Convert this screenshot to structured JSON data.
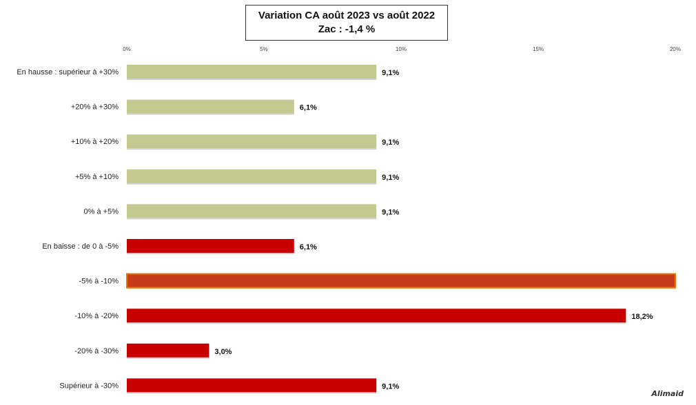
{
  "chart_data": {
    "type": "bar",
    "orientation": "horizontal",
    "title": "Variation CA août 2023 vs août 2022",
    "subtitle": "Zac : -1,4 %",
    "categories": [
      "En hausse : supérieur à +30%",
      "+20% à +30%",
      "+10% à +20%",
      "+5% à +10%",
      "0% à +5%",
      "En baisse : de 0 à -5%",
      "-5% à -10%",
      "-10% à -20%",
      "-20% à -30%",
      "Supérieur à -30%"
    ],
    "values": [
      9.1,
      6.1,
      9.1,
      9.1,
      9.1,
      6.1,
      20.0,
      18.2,
      3.0,
      9.1
    ],
    "value_labels": [
      "9,1%",
      "6,1%",
      "9,1%",
      "9,1%",
      "9,1%",
      "6,1%",
      "",
      "18,2%",
      "3,0%",
      "9,1%"
    ],
    "bar_colors": [
      "#c4c98f",
      "#c4c98f",
      "#c4c98f",
      "#c4c98f",
      "#c4c98f",
      "#c80000",
      "#c83a18",
      "#c80000",
      "#c80000",
      "#c80000"
    ],
    "xlim": [
      0,
      20
    ],
    "xticks": [
      "0%",
      "5%",
      "10%",
      "15%",
      "20%"
    ],
    "grid": false,
    "legend": "none"
  },
  "watermark": "Alimaid"
}
